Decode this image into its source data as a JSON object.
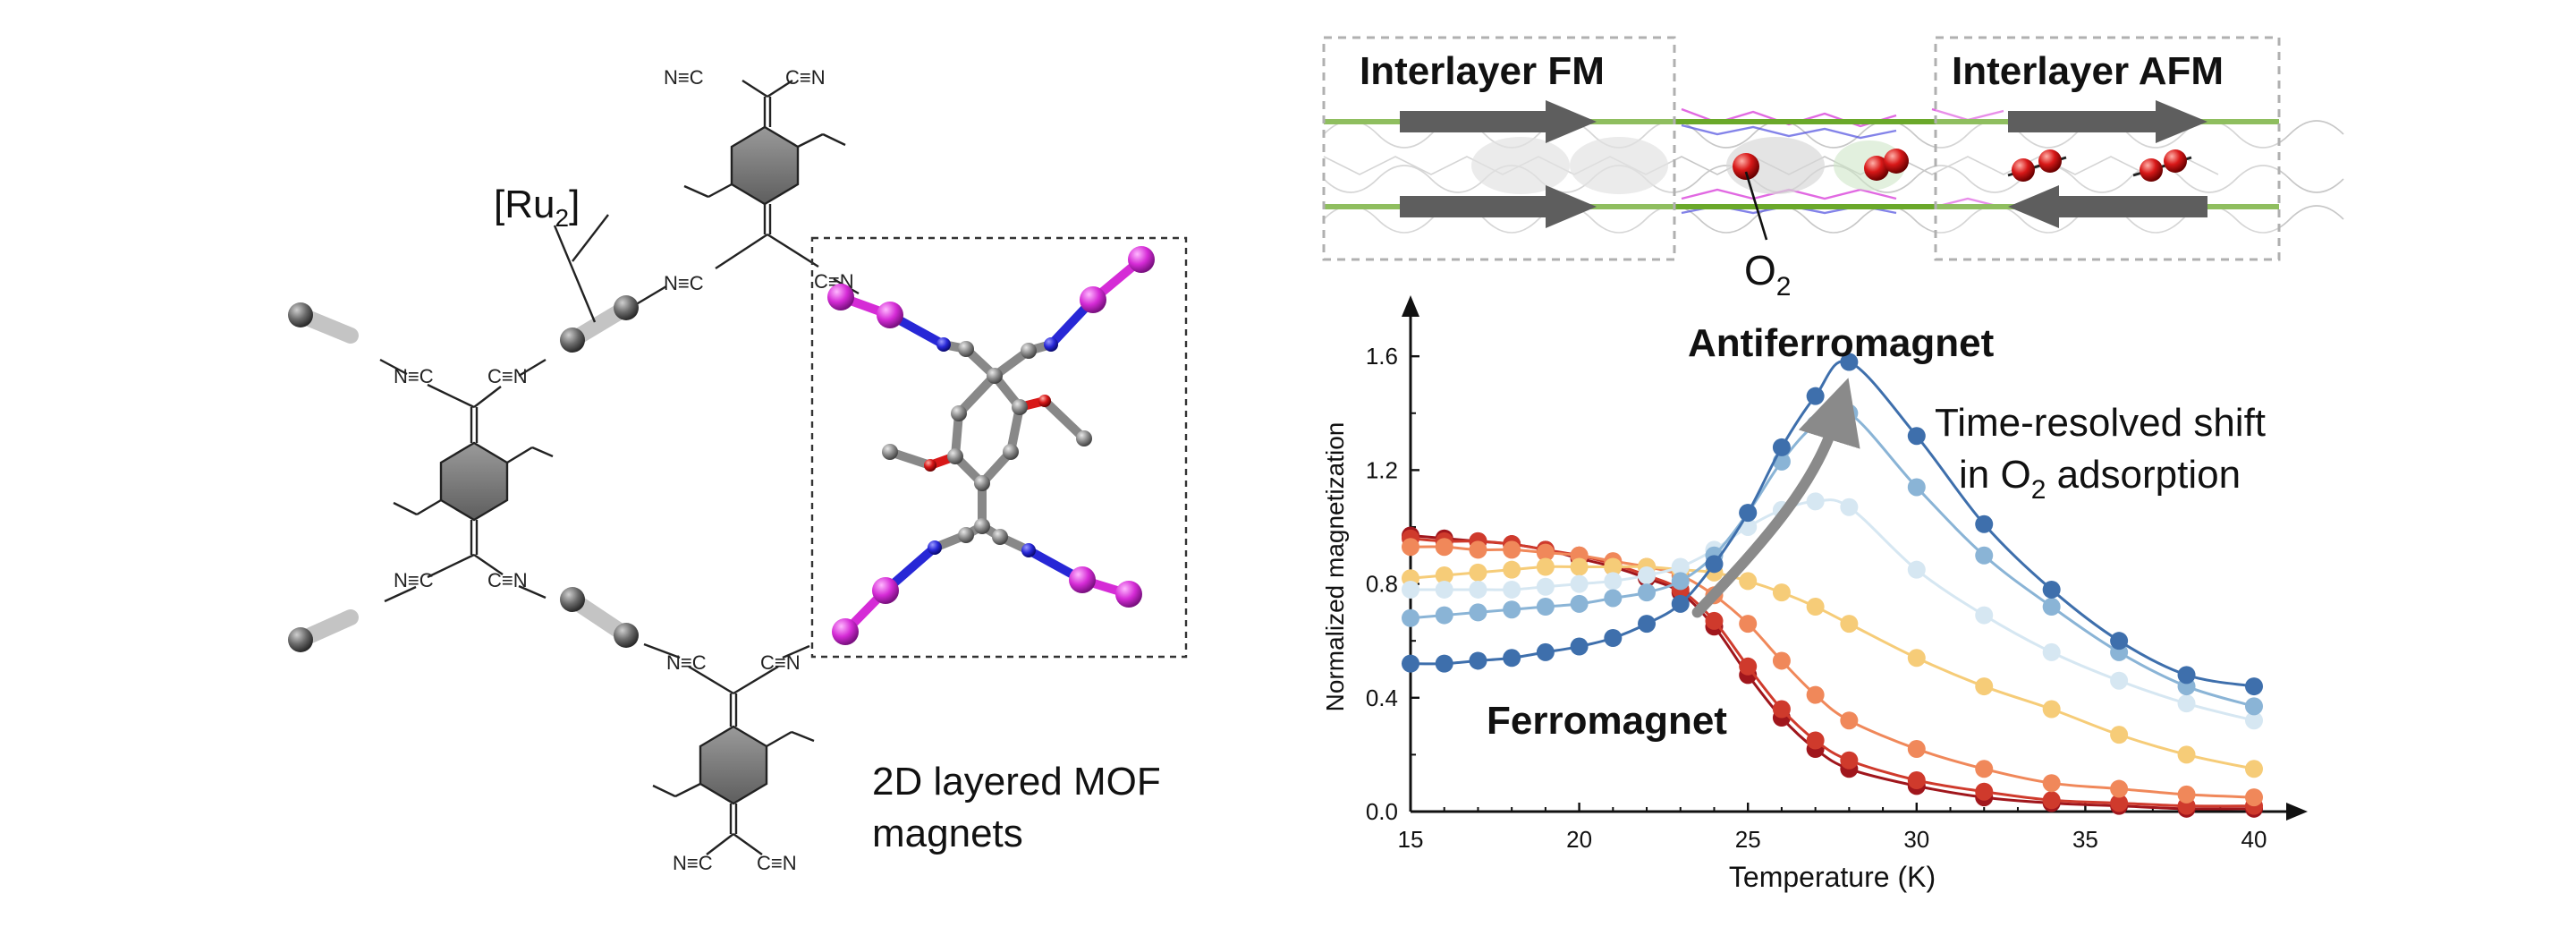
{
  "molecule": {
    "ru_label": "[Ru",
    "ru_subscript": "2",
    "ru_close": "]",
    "caption_line1": "2D layered MOF",
    "caption_line2": "magnets",
    "cn_nc": "N≡C",
    "cn_cn": "C≡N",
    "n_label": "N",
    "c_label": "C",
    "atom_colors": {
      "ru": "#5b5b5b",
      "n": "#2727d6",
      "c": "#7a7a7a",
      "linker_metal": "#d52bd6"
    }
  },
  "structure_panel": {
    "fm_label": "Interlayer FM",
    "afm_label": "Interlayer AFM",
    "o2_label": "O",
    "o2_subscript": "2",
    "fm_color": "#c0121a",
    "afm_color": "#1f5c84"
  },
  "chart_data": {
    "type": "line",
    "xlabel": "Temperature (K)",
    "ylabel": "Normalized magnetization",
    "xlim": [
      15,
      40
    ],
    "ylim": [
      0,
      1.72
    ],
    "xticks": [
      15,
      20,
      25,
      30,
      35,
      40
    ],
    "yticks": [
      0.0,
      0.4,
      0.8,
      1.2,
      1.6
    ],
    "ytick_labels": [
      "0.0",
      "0.4",
      "0.8",
      "1.2",
      "1.6"
    ],
    "x": [
      15,
      16,
      17,
      18,
      19,
      20,
      21,
      22,
      23,
      24,
      25,
      26,
      27,
      28,
      30,
      32,
      34,
      36,
      38,
      40
    ],
    "series": [
      {
        "color": "#a0161c",
        "values": [
          0.97,
          0.96,
          0.95,
          0.94,
          0.92,
          0.89,
          0.86,
          0.82,
          0.77,
          0.65,
          0.48,
          0.33,
          0.22,
          0.15,
          0.09,
          0.05,
          0.03,
          0.02,
          0.01,
          0.01
        ]
      },
      {
        "color": "#cf3a2c",
        "values": [
          0.96,
          0.95,
          0.95,
          0.94,
          0.92,
          0.9,
          0.87,
          0.83,
          0.78,
          0.67,
          0.51,
          0.36,
          0.25,
          0.18,
          0.11,
          0.07,
          0.04,
          0.03,
          0.02,
          0.02
        ]
      },
      {
        "color": "#f0885a",
        "values": [
          0.93,
          0.93,
          0.92,
          0.92,
          0.91,
          0.9,
          0.88,
          0.86,
          0.83,
          0.76,
          0.66,
          0.53,
          0.41,
          0.32,
          0.22,
          0.15,
          0.1,
          0.08,
          0.06,
          0.05
        ]
      },
      {
        "color": "#f6cc78",
        "values": [
          0.82,
          0.83,
          0.84,
          0.85,
          0.86,
          0.86,
          0.86,
          0.86,
          0.85,
          0.84,
          0.81,
          0.77,
          0.72,
          0.66,
          0.54,
          0.44,
          0.36,
          0.27,
          0.2,
          0.15
        ]
      },
      {
        "color": "#d6e7f2",
        "values": [
          0.78,
          0.78,
          0.78,
          0.78,
          0.79,
          0.8,
          0.81,
          0.83,
          0.86,
          0.92,
          1.0,
          1.06,
          1.09,
          1.07,
          0.85,
          0.69,
          0.56,
          0.46,
          0.38,
          0.32
        ]
      },
      {
        "color": "#8ab4d6",
        "values": [
          0.68,
          0.69,
          0.7,
          0.71,
          0.72,
          0.73,
          0.75,
          0.77,
          0.81,
          0.9,
          1.05,
          1.23,
          1.36,
          1.4,
          1.14,
          0.9,
          0.72,
          0.56,
          0.44,
          0.37
        ]
      },
      {
        "color": "#3e6fac",
        "values": [
          0.52,
          0.52,
          0.53,
          0.54,
          0.56,
          0.58,
          0.61,
          0.66,
          0.73,
          0.87,
          1.05,
          1.28,
          1.46,
          1.58,
          1.32,
          1.01,
          0.78,
          0.6,
          0.48,
          0.44
        ]
      }
    ],
    "annotations": {
      "afm": "Antiferromagnet",
      "fm": "Ferromagnet",
      "shift_line1": "Time-resolved shift",
      "shift_line2a": "in O",
      "shift_sub": "2",
      "shift_line2b": " adsorption"
    },
    "afm_color": "#4a78bd",
    "fm_color": "#c0121a",
    "legend": "none",
    "grid": false
  }
}
